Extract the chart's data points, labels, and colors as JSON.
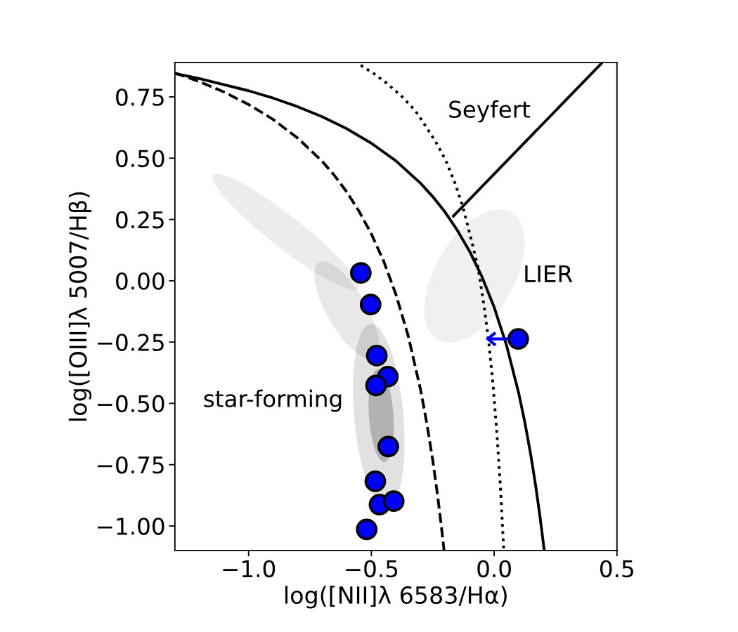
{
  "chart_data": {
    "type": "scatter",
    "xlabel": "log([NII]λ 6583/Hα)",
    "ylabel": "log([OIII]λ 5007/Hβ)",
    "xlim": [
      -1.3,
      0.5
    ],
    "ylim": [
      -1.1,
      0.89
    ],
    "xticks": [
      {
        "value": -1.0,
        "label": "−1.0"
      },
      {
        "value": -0.5,
        "label": "−0.5"
      },
      {
        "value": 0.0,
        "label": "0.0"
      },
      {
        "value": 0.5,
        "label": "0.5"
      }
    ],
    "yticks": [
      {
        "value": -1.0,
        "label": "−1.00"
      },
      {
        "value": -0.75,
        "label": "−0.75"
      },
      {
        "value": -0.5,
        "label": "−0.50"
      },
      {
        "value": -0.25,
        "label": "−0.25"
      },
      {
        "value": 0.0,
        "label": "0.00"
      },
      {
        "value": 0.25,
        "label": "0.25"
      },
      {
        "value": 0.5,
        "label": "0.50"
      },
      {
        "value": 0.75,
        "label": "0.75"
      }
    ],
    "grid": false,
    "annotations": [
      "Seyfert",
      "LIER",
      "star-forming"
    ],
    "series": [
      {
        "type": "line",
        "color": "#000000",
        "line_style": "solid",
        "x": [
          -1.3,
          -1.2,
          -1.1,
          -1.0,
          -0.9,
          -0.8,
          -0.7,
          -0.6,
          -0.5,
          -0.4,
          -0.3,
          -0.25,
          -0.2,
          -0.15,
          -0.1,
          -0.05,
          0.0,
          0.05,
          0.1,
          0.125,
          0.15,
          0.17,
          0.185,
          0.204
        ],
        "values": [
          0.845,
          0.825,
          0.8,
          0.775,
          0.745,
          0.71,
          0.669,
          0.62,
          0.561,
          0.489,
          0.398,
          0.343,
          0.28,
          0.206,
          0.12,
          0.017,
          -0.108,
          -0.262,
          -0.459,
          -0.578,
          -0.716,
          -0.843,
          -0.95,
          -1.1
        ]
      },
      {
        "type": "line",
        "color": "#000000",
        "line_style": "dashed",
        "x": [
          -1.3,
          -1.2,
          -1.1,
          -1.0,
          -0.9,
          -0.8,
          -0.7,
          -0.65,
          -0.6,
          -0.55,
          -0.5,
          -0.45,
          -0.4,
          -0.35,
          -0.3,
          -0.275,
          -0.25,
          -0.23,
          -0.215,
          -0.204
        ],
        "values": [
          0.848,
          0.812,
          0.77,
          0.719,
          0.658,
          0.582,
          0.487,
          0.429,
          0.362,
          0.283,
          0.191,
          0.08,
          -0.056,
          -0.225,
          -0.443,
          -0.577,
          -0.733,
          -0.879,
          -1.002,
          -1.1
        ]
      },
      {
        "type": "line",
        "color": "#000000",
        "line_style": "dotted",
        "x": [
          -0.543,
          -0.49,
          -0.438,
          -0.38,
          -0.323,
          -0.29,
          -0.238,
          -0.199,
          -0.16,
          -0.128,
          -0.094,
          -0.066,
          -0.042,
          -0.023,
          -0.004,
          0.011,
          0.025,
          0.039
        ],
        "values": [
          0.879,
          0.845,
          0.806,
          0.756,
          0.696,
          0.648,
          0.567,
          0.495,
          0.4,
          0.304,
          0.17,
          0.056,
          -0.097,
          -0.24,
          -0.431,
          -0.622,
          -0.832,
          -1.1
        ]
      },
      {
        "type": "line",
        "color": "#000000",
        "line_style": "solid",
        "x": [
          -0.17,
          0.44
        ],
        "values": [
          0.26,
          0.89
        ]
      },
      {
        "color": "#0000ff",
        "marker": "circle",
        "x": [
          -0.543,
          -0.503,
          -0.478,
          -0.433,
          -0.481,
          -0.431,
          -0.484,
          -0.467,
          -0.409,
          -0.519,
          0.098
        ],
        "values": [
          0.032,
          -0.097,
          -0.305,
          -0.391,
          -0.427,
          -0.676,
          -0.818,
          -0.913,
          -0.899,
          -1.014,
          -0.237
        ],
        "xerrors": [
          null,
          null,
          null,
          null,
          null,
          null,
          null,
          null,
          null,
          null,
          [
            -0.026,
            0.098
          ]
        ]
      }
    ]
  }
}
